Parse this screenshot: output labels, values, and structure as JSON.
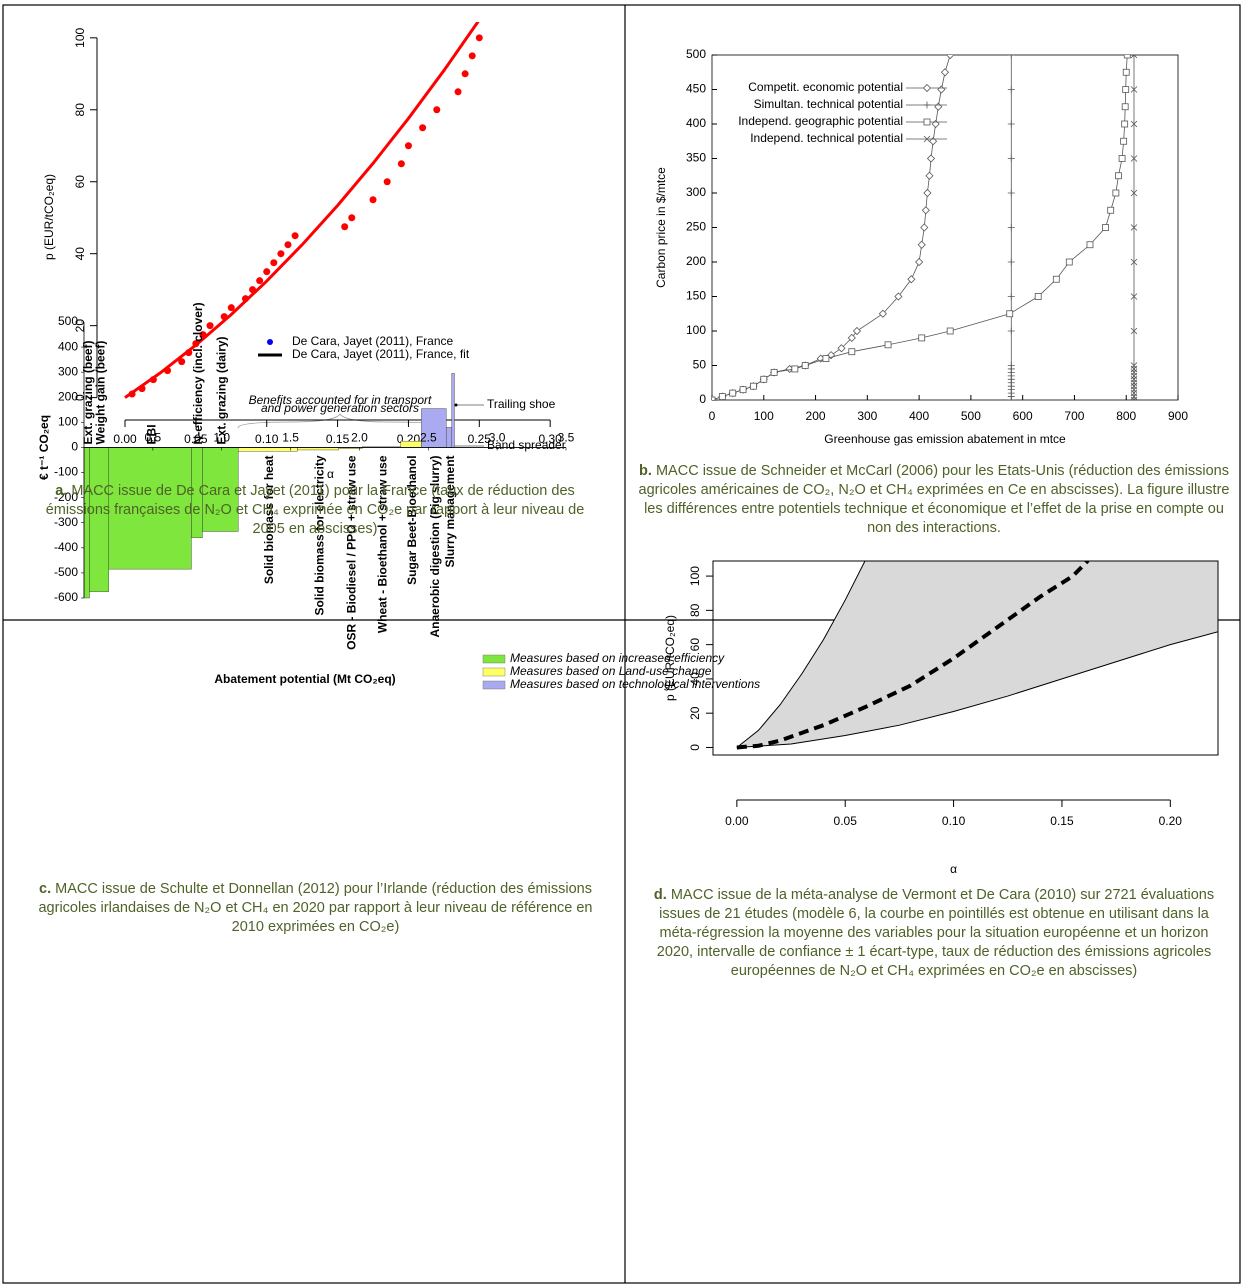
{
  "chart_data": [
    {
      "type": "scatter",
      "caption_label": "a.",
      "caption": "MACC issue de De Cara et Jayet (2011) pour la France (taux de réduction des émissions françaises de N₂O et CH₄ exprimée en CO₂e par rapport à leur niveau de 2005 en abscisses)",
      "xlabel": "α",
      "ylabel": "p (EUR/tCO₂eq)",
      "xlim": [
        -0.012,
        0.302
      ],
      "ylim": [
        -4,
        104.4
      ],
      "xticks": [
        {
          "value": 0,
          "label": "0.00"
        },
        0.05,
        {
          "value": 0.1,
          "label": "0.10"
        },
        0.15,
        {
          "value": 0.2,
          "label": "0.20"
        },
        0.25,
        {
          "value": 0.3,
          "label": "0.30"
        }
      ],
      "yticks": [
        0,
        20,
        40,
        60,
        80,
        100
      ],
      "series": [
        {
          "name": "De Cara, Jayet (2011), France",
          "color": "#ff0000",
          "legend_color": "#0000ff",
          "marker": "dot",
          "x": [
            0.005,
            0.012,
            0.02,
            0.03,
            0.04,
            0.045,
            0.05,
            0.055,
            0.06,
            0.07,
            0.075,
            0.085,
            0.09,
            0.095,
            0.1,
            0.105,
            0.11,
            0.115,
            0.12,
            0.155,
            0.16,
            0.175,
            0.185,
            0.195,
            0.2,
            0.21,
            0.22,
            0.235,
            0.24,
            0.245,
            0.25
          ],
          "values": [
            1,
            2.5,
            5,
            7.5,
            10,
            12.5,
            15,
            17.5,
            20,
            22.5,
            25,
            27.5,
            30,
            32.5,
            35,
            37.5,
            40,
            42.5,
            45,
            47.5,
            50,
            55,
            60,
            65,
            70,
            75,
            80,
            85,
            90,
            95,
            100
          ]
        },
        {
          "name": "De Cara, Jayet (2011), France, fit",
          "color": "#ff0000",
          "legend_color": "#000000",
          "marker": "line",
          "x": [
            0,
            0.025,
            0.05,
            0.075,
            0.1,
            0.125,
            0.15,
            0.175,
            0.2,
            0.225,
            0.25
          ],
          "values": [
            0,
            6.9,
            14.6,
            23.1,
            32.4,
            42.5,
            53.4,
            65.1,
            77.6,
            90.9,
            105
          ]
        }
      ]
    },
    {
      "type": "line",
      "caption_label": "b.",
      "caption": "MACC issue de Schneider et McCarl (2006) pour les Etats-Unis (réduction des émissions agricoles américaines  de CO₂, N₂O et CH₄ exprimées en Ce en abscisses). La figure illustre les différences entre potentiels technique et économique et l’effet de la prise en compte ou non des interactions.",
      "xlabel": "Greenhouse gas emission abatement in mtce",
      "ylabel": "Carbon price in $/mtce",
      "xlim": [
        0,
        900
      ],
      "ylim": [
        0,
        500
      ],
      "xticks": [
        0,
        100,
        200,
        300,
        400,
        500,
        600,
        700,
        800,
        900
      ],
      "yticks": [
        0,
        50,
        100,
        150,
        200,
        250,
        300,
        350,
        400,
        450,
        500
      ],
      "legend": "top-left",
      "series": [
        {
          "name": "Competit. economic potential",
          "color": "#555555",
          "marker": "diamond",
          "x": [
            0,
            20,
            40,
            60,
            80,
            100,
            120,
            150,
            180,
            210,
            230,
            250,
            270,
            280,
            330,
            360,
            385,
            400,
            405,
            410,
            413,
            416,
            420,
            423,
            427,
            432,
            437,
            443,
            450,
            460
          ],
          "values": [
            0,
            5,
            10,
            15,
            20,
            30,
            40,
            45,
            50,
            60,
            65,
            75,
            90,
            100,
            125,
            150,
            175,
            200,
            225,
            250,
            275,
            300,
            325,
            350,
            375,
            400,
            425,
            450,
            475,
            500
          ]
        },
        {
          "name": "Simultan. technical potential",
          "color": "#555555",
          "marker": "plus",
          "x": [
            578,
            578,
            578,
            578,
            578,
            578,
            578,
            578,
            578,
            578,
            578,
            578,
            578,
            578,
            578,
            578,
            578,
            578,
            578,
            578
          ],
          "values": [
            0,
            5,
            10,
            15,
            20,
            25,
            30,
            35,
            40,
            45,
            50,
            100,
            150,
            200,
            250,
            300,
            350,
            400,
            450,
            500
          ]
        },
        {
          "name": "Independ. geographic potential",
          "color": "#555555",
          "marker": "square",
          "x": [
            0,
            20,
            40,
            60,
            80,
            100,
            120,
            160,
            180,
            220,
            270,
            340,
            405,
            460,
            575,
            630,
            665,
            690,
            730,
            760,
            770,
            780,
            785,
            792,
            795,
            797,
            798,
            799,
            800,
            802
          ],
          "values": [
            0,
            5,
            10,
            15,
            20,
            30,
            40,
            45,
            50,
            60,
            70,
            80,
            90,
            100,
            125,
            150,
            175,
            200,
            225,
            250,
            275,
            300,
            325,
            350,
            375,
            400,
            425,
            450,
            475,
            500
          ]
        },
        {
          "name": "Independ. technical potential",
          "color": "#555555",
          "marker": "cross",
          "x": [
            815,
            815,
            815,
            815,
            815,
            815,
            815,
            815,
            815,
            815,
            815,
            815,
            815,
            815,
            815,
            815,
            815,
            815,
            815,
            815
          ],
          "values": [
            0,
            5,
            10,
            15,
            20,
            25,
            30,
            35,
            40,
            45,
            50,
            100,
            150,
            200,
            250,
            300,
            350,
            400,
            450,
            500
          ]
        }
      ]
    },
    {
      "type": "bar",
      "caption_label": "c.",
      "caption": "MACC issue de Schulte et Donnellan (2012) pour l’Irlande (réduction des émissions agricoles irlandaises de  N₂O et CH₄ en 2020 par rapport à leur niveau de référence en 2010 exprimées en CO₂e)",
      "xlabel": "Abatement potential (Mt CO₂eq)",
      "ylabel": "€ t⁻¹ CO₂eq",
      "xlim": [
        0,
        3.5
      ],
      "ylim": [
        -600,
        500
      ],
      "xticks": [
        0.5,
        {
          "value": 1,
          "label": "1.0"
        },
        1.5,
        {
          "value": 2,
          "label": "2.0"
        },
        2.5,
        {
          "value": 3,
          "label": "3.0"
        },
        3.5
      ],
      "yticks": [
        500,
        400,
        300,
        200,
        100,
        0,
        -100,
        -200,
        -300,
        -400,
        -500,
        -600
      ],
      "categories": [
        "Ext. grazing (beef)",
        "Weight gain (beef)",
        "EBI",
        "N-efficiency (incl. clover)",
        "Ext. grazing (dairy)",
        "Solid biomass for heat",
        "Solid biomass for electricity",
        "OSR - Biodiesel / PPO + straw use",
        "Wheat - Bioethanol + straw use",
        "Sugar Beet-Bioethanol",
        "Anaerobic digestion (Pig slurry)",
        "Slurry management",
        null
      ],
      "bins": [
        0,
        0.04,
        0.18,
        0.78,
        0.86,
        1.12,
        1.55,
        1.85,
        2.02,
        2.3,
        2.45,
        2.63,
        2.67,
        2.69
      ],
      "values": [
        -600,
        -575,
        -485,
        -360,
        -335,
        -15,
        -10,
        -5,
        3,
        25,
        155,
        80,
        295
      ],
      "colors": [
        "#7ee63c",
        "#7ee63c",
        "#7ee63c",
        "#7ee63c",
        "#7ee63c",
        "#ffff66",
        "#ffff66",
        "#ffff66",
        "#ffff66",
        "#ffff66",
        "#aaaaf0",
        "#aaaaf0",
        "#aaaaf0"
      ],
      "legend": [
        {
          "name": "Measures based on increased efficiency",
          "color": "#7ee63c"
        },
        {
          "name": "Measures based on Land-use change",
          "color": "#ffff66"
        },
        {
          "name": "Measures based on technological interventions",
          "color": "#aaaaf0"
        }
      ],
      "annotations": [
        "Benefits accounted for in transport",
        "and power generation sectors",
        "Trailing shoe",
        "Band spreader"
      ]
    },
    {
      "type": "band",
      "caption_label": "d.",
      "caption": "MACC issue de la méta-analyse de Vermont et De Cara (2010) sur 2721 évaluations issues de 21 études (modèle 6, la courbe en pointillés est obtenue en utilisant dans la méta-régression la moyenne des variables pour la situation européenne et un horizon 2020, intervalle de confiance ± 1 écart-type, taux de réduction des émissions agricoles européennes de N₂O et CH₄ exprimées en CO₂e en abscisses)",
      "xlabel": "α",
      "ylabel": "p (EUR/tCO₂eq)",
      "xlim": [
        -0.011,
        0.222
      ],
      "ylim": [
        -4.4,
        108.8
      ],
      "xticks": [
        {
          "value": 0,
          "label": "0.00"
        },
        0.05,
        {
          "value": 0.1,
          "label": "0.10"
        },
        0.15,
        {
          "value": 0.2,
          "label": "0.20"
        }
      ],
      "yticks": [
        0,
        20,
        40,
        60,
        80,
        100
      ],
      "fill": "#d9d9d9",
      "series": [
        {
          "color": "#000000",
          "style": "solid",
          "x": [
            0,
            0.025,
            0.05,
            0.075,
            0.1,
            0.125,
            0.15,
            0.175,
            0.2,
            0.222
          ],
          "values": [
            0,
            2,
            7,
            13,
            21,
            30,
            40,
            50,
            60,
            67.5
          ]
        },
        {
          "color": "#000000",
          "style": "solid",
          "x": [
            0,
            0.01,
            0.02,
            0.03,
            0.04,
            0.05,
            0.06
          ],
          "values": [
            0,
            10,
            25,
            43,
            63,
            86,
            111
          ]
        },
        {
          "color": "#000000",
          "style": "dashed",
          "x": [
            0,
            0.01,
            0.02,
            0.04,
            0.06,
            0.08,
            0.1,
            0.12,
            0.14,
            0.155,
            0.162
          ],
          "values": [
            0,
            1,
            4,
            13,
            24,
            36,
            52,
            70,
            88,
            100,
            109
          ]
        }
      ]
    }
  ]
}
